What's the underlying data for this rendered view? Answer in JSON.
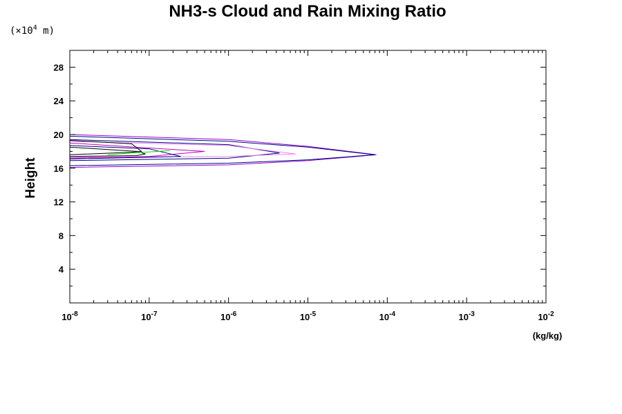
{
  "chart_data": {
    "type": "line",
    "title": "NH3-s Cloud and Rain Mixing Ratio",
    "y_unit_prefix": "(×10",
    "y_unit_exp": "4",
    "y_unit_suffix": " m)",
    "ylabel": "Height",
    "xlabel": "(kg/kg)",
    "x_scale": "log",
    "x_range": [
      1e-08,
      0.01
    ],
    "y_range": [
      0,
      30
    ],
    "x_ticks": [
      {
        "value": 1e-08,
        "base": "10",
        "exp": "-8"
      },
      {
        "value": 1e-07,
        "base": "10",
        "exp": "-7"
      },
      {
        "value": 1e-06,
        "base": "10",
        "exp": "-6"
      },
      {
        "value": 1e-05,
        "base": "10",
        "exp": "-5"
      },
      {
        "value": 0.0001,
        "base": "10",
        "exp": "-4"
      },
      {
        "value": 0.001,
        "base": "10",
        "exp": "-3"
      },
      {
        "value": 0.01,
        "base": "10",
        "exp": "-2"
      }
    ],
    "y_ticks": [
      {
        "value": 4,
        "label": "4"
      },
      {
        "value": 8,
        "label": "8"
      },
      {
        "value": 12,
        "label": "12"
      },
      {
        "value": 16,
        "label": "16"
      },
      {
        "value": 20,
        "label": "20"
      },
      {
        "value": 24,
        "label": "24"
      },
      {
        "value": 28,
        "label": "28"
      }
    ],
    "grid": false,
    "series": [
      {
        "color": "#9400d3",
        "x": [
          1e-08,
          1e-06,
          1e-05,
          7.3e-05,
          1e-05,
          1e-06,
          1e-08
        ],
        "y": [
          20.0,
          19.4,
          18.6,
          17.6,
          16.9,
          16.4,
          16.1
        ]
      },
      {
        "color": "#000080",
        "x": [
          1e-08,
          1e-06,
          1e-05,
          7e-05,
          1e-05,
          1e-06,
          1e-08
        ],
        "y": [
          19.8,
          19.2,
          18.5,
          17.6,
          17.0,
          16.6,
          16.3
        ]
      },
      {
        "color": "#000080",
        "x": [
          1e-08,
          1e-06,
          4.4e-06,
          1e-06,
          1e-08
        ],
        "y": [
          19.4,
          18.8,
          17.8,
          17.2,
          16.9
        ]
      },
      {
        "color": "#ee82ee",
        "x": [
          1e-08,
          1e-06,
          7e-06,
          1e-06,
          1e-08
        ],
        "y": [
          19.2,
          18.7,
          17.7,
          17.4,
          17.3
        ]
      },
      {
        "color": "#c000c0",
        "x": [
          1e-08,
          1e-07,
          5e-07,
          1e-07,
          1e-08
        ],
        "y": [
          19.0,
          18.4,
          18.0,
          17.4,
          17.2
        ]
      },
      {
        "color": "#000080",
        "x": [
          1e-08,
          1e-07,
          2.5e-07,
          1e-07,
          1e-08
        ],
        "y": [
          18.7,
          18.3,
          17.4,
          17.3,
          17.1
        ]
      },
      {
        "color": "#000000",
        "x": [
          1e-08,
          6e-08,
          8e-08,
          6e-08,
          1e-08
        ],
        "y": [
          19.3,
          18.9,
          18.0,
          17.9,
          17.6
        ]
      },
      {
        "color": "#000000",
        "x": [
          1e-08,
          7e-08,
          9e-08,
          7e-08,
          1e-08
        ],
        "y": [
          18.5,
          18.0,
          17.7,
          17.5,
          17.4
        ]
      },
      {
        "color": "#00dd00",
        "x": [
          3e-08,
          6e-08,
          1.3e-07,
          1.8e-07
        ],
        "y": [
          17.6,
          17.8,
          18.0,
          18.1
        ]
      }
    ]
  }
}
